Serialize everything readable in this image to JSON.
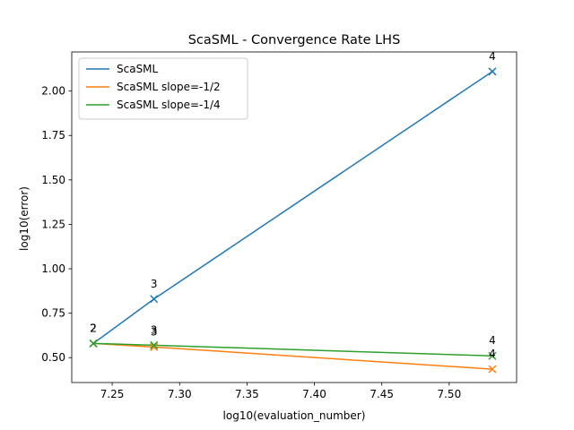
{
  "chart_data": {
    "type": "line",
    "title": "ScaSML - Convergence Rate LHS",
    "xlabel": "log10(evaluation_number)",
    "ylabel": "log10(error)",
    "xlim": [
      7.22,
      7.55
    ],
    "ylim": [
      0.36,
      2.22
    ],
    "xticks": [
      7.25,
      7.3,
      7.35,
      7.4,
      7.45,
      7.5
    ],
    "xtick_labels": [
      "7.25",
      "7.30",
      "7.35",
      "7.40",
      "7.45",
      "7.50"
    ],
    "yticks": [
      0.5,
      0.75,
      1.0,
      1.25,
      1.5,
      1.75,
      2.0
    ],
    "ytick_labels": [
      "0.50",
      "0.75",
      "1.00",
      "1.25",
      "1.50",
      "1.75",
      "2.00"
    ],
    "grid": false,
    "legend_position": "top-left",
    "marker": "x",
    "series": [
      {
        "name": "ScaSML",
        "color": "#1f77b4",
        "x": [
          7.236,
          7.281,
          7.532
        ],
        "y": [
          0.58,
          0.83,
          2.11
        ],
        "point_labels": [
          "2",
          "3",
          "4"
        ]
      },
      {
        "name": "ScaSML slope=-1/2",
        "color": "#ff7f0e",
        "x": [
          7.236,
          7.281,
          7.532
        ],
        "y": [
          0.58,
          0.56,
          0.435
        ],
        "point_labels": [
          "2",
          "3",
          "4"
        ]
      },
      {
        "name": "ScaSML slope=-1/4",
        "color": "#2ca02c",
        "x": [
          7.236,
          7.281,
          7.532
        ],
        "y": [
          0.58,
          0.57,
          0.51
        ],
        "point_labels": [
          "2",
          "3",
          "4"
        ]
      }
    ]
  }
}
